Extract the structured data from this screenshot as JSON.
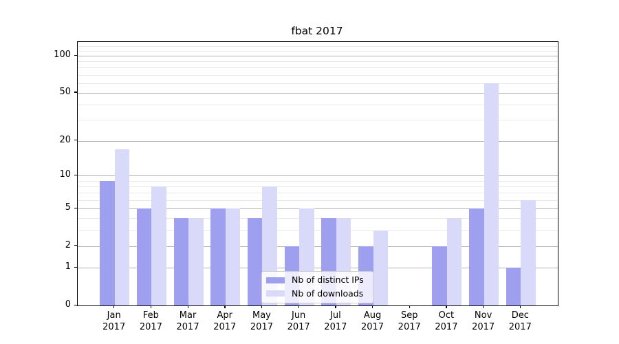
{
  "title": "fbat 2017",
  "year": "2017",
  "chart_data": {
    "type": "bar",
    "title": "fbat 2017",
    "categories": [
      "Jan",
      "Feb",
      "Mar",
      "Apr",
      "May",
      "Jun",
      "Jul",
      "Aug",
      "Sep",
      "Oct",
      "Nov",
      "Dec"
    ],
    "x_year_suffix": "2017",
    "series": [
      {
        "name": "Nb of distinct IPs",
        "color": "#9f9ff0",
        "values": [
          9,
          5,
          4,
          5,
          4,
          2,
          4,
          2,
          0,
          2,
          5,
          1
        ]
      },
      {
        "name": "Nb of downloads",
        "color": "#d9d9f9",
        "values": [
          17,
          8,
          4,
          5,
          8,
          5,
          4,
          3,
          0,
          4,
          60,
          6
        ]
      }
    ],
    "xlabel": "",
    "ylabel": "",
    "yscale": "log1p",
    "y_ticks": [
      0,
      1,
      2,
      5,
      10,
      20,
      50,
      100
    ],
    "y_minor_gridlines": [
      3,
      4,
      6,
      7,
      8,
      9,
      30,
      40,
      60,
      70,
      80,
      90,
      110,
      120
    ],
    "ylim": [
      0,
      129
    ],
    "grid": "horizontal major+minor",
    "legend_position": "lower center"
  },
  "colors": {
    "grid_major": "#b0b0b0",
    "grid_minor": "#e8e8e8",
    "spine": "#000000",
    "legend_border": "#cccccc"
  }
}
